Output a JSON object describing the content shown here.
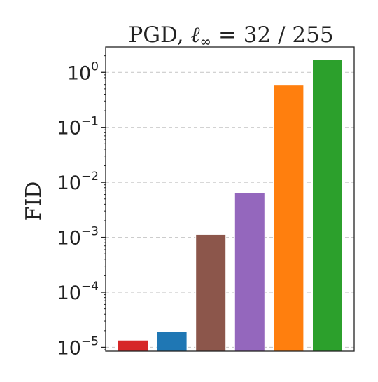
{
  "chart_data": {
    "type": "bar",
    "title": {
      "main": "PGD, ",
      "norm_symbol": "ℓ",
      "norm_sub": "∞",
      "rest": " = 32 / 255"
    },
    "xlabel": "",
    "ylabel": "FID",
    "yscale": "log",
    "ylim": [
      8.5e-06,
      2.9
    ],
    "grid": "y-dashed",
    "y_tick_labels": [
      {
        "base": "10",
        "exp": "0",
        "value": 1
      },
      {
        "base": "10",
        "exp": "−1",
        "value": 0.1
      },
      {
        "base": "10",
        "exp": "−2",
        "value": 0.01
      },
      {
        "base": "10",
        "exp": "−3",
        "value": 0.001
      },
      {
        "base": "10",
        "exp": "−4",
        "value": 0.0001
      },
      {
        "base": "10",
        "exp": "−5",
        "value": 1e-05
      }
    ],
    "values": [
      1.35e-05,
      1.95e-05,
      0.00113,
      0.0064,
      0.6,
      1.7
    ],
    "colors": [
      "#d62728",
      "#1f77b4",
      "#8c564b",
      "#9467bd",
      "#ff7f0e",
      "#2ca02c"
    ]
  }
}
